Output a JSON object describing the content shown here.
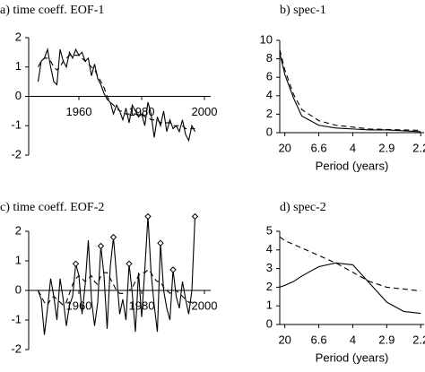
{
  "chart_data": [
    {
      "type": "line",
      "title": "a) time coeff. EOF-1",
      "x": [
        1947,
        1948,
        1949,
        1950,
        1951,
        1952,
        1953,
        1954,
        1955,
        1956,
        1957,
        1958,
        1959,
        1960,
        1961,
        1962,
        1963,
        1964,
        1965,
        1966,
        1967,
        1968,
        1969,
        1970,
        1971,
        1972,
        1973,
        1974,
        1975,
        1976,
        1977,
        1978,
        1979,
        1980,
        1981,
        1982,
        1983,
        1984,
        1985,
        1986,
        1987,
        1988,
        1989,
        1990,
        1991,
        1992,
        1993,
        1994,
        1995,
        1996,
        1997
      ],
      "series": [
        {
          "color": "#000000",
          "dash": false,
          "values": [
            0.5,
            1.2,
            1.3,
            1.6,
            1.0,
            0.5,
            0.4,
            1.6,
            1.2,
            1.0,
            1.5,
            1.3,
            1.6,
            1.4,
            1.5,
            1.2,
            1.3,
            0.7,
            1.1,
            0.6,
            0.4,
            0.1,
            -0.1,
            -0.2,
            -0.6,
            -0.3,
            -0.5,
            -0.8,
            -0.4,
            -0.9,
            -0.3,
            -0.5,
            -0.7,
            -0.6,
            -1.0,
            -0.2,
            -0.6,
            -1.4,
            -0.7,
            -1.0,
            -0.5,
            -1.2,
            -0.8,
            -1.1,
            -1.0,
            -1.2,
            -0.8,
            -1.3,
            -1.5,
            -1.0,
            -1.2
          ]
        },
        {
          "color": "#000000",
          "dash": true,
          "values": [
            1.0,
            1.2,
            1.3,
            1.3,
            1.2,
            1.0,
            0.9,
            1.0,
            1.2,
            1.3,
            1.4,
            1.4,
            1.4,
            1.4,
            1.3,
            1.2,
            1.1,
            1.0,
            0.9,
            0.7,
            0.5,
            0.3,
            0.0,
            -0.2,
            -0.3,
            -0.4,
            -0.5,
            -0.5,
            -0.6,
            -0.6,
            -0.6,
            -0.6,
            -0.6,
            -0.6,
            -0.7,
            -0.7,
            -0.8,
            -0.8,
            -0.8,
            -0.9,
            -0.9,
            -0.9,
            -0.9,
            -1.0,
            -1.0,
            -1.0,
            -1.0,
            -1.1,
            -1.1,
            -1.1,
            -1.1
          ]
        }
      ],
      "xlim": [
        1944,
        2002
      ],
      "xticks": [
        1960,
        1980,
        2000
      ],
      "ylim": [
        -2,
        2
      ],
      "yticks": [
        2,
        1,
        0,
        -1,
        -2
      ]
    },
    {
      "type": "line",
      "title": "b) spec-1",
      "xlabel": "Period (years)",
      "x": [
        0.035,
        0.05,
        0.075,
        0.1,
        0.15,
        0.2,
        0.25,
        0.3,
        0.35,
        0.4,
        0.45
      ],
      "series": [
        {
          "color": "#000000",
          "dash": false,
          "values": [
            8.6,
            6.3,
            3.8,
            1.8,
            0.8,
            0.5,
            0.4,
            0.3,
            0.3,
            0.2,
            0.1
          ]
        },
        {
          "color": "#000000",
          "dash": true,
          "values": [
            9.0,
            6.8,
            4.2,
            2.5,
            1.3,
            0.8,
            0.6,
            0.4,
            0.35,
            0.3,
            0.25
          ]
        }
      ],
      "xlim": [
        0.035,
        0.46
      ],
      "xticks": [
        {
          "value": 0.05,
          "label": "20"
        },
        {
          "value": 0.15,
          "label": "6.6"
        },
        {
          "value": 0.25,
          "label": "4"
        },
        {
          "value": 0.35,
          "label": "2.9"
        },
        {
          "value": 0.45,
          "label": "2.2"
        }
      ],
      "ylim": [
        0,
        10
      ],
      "yticks": [
        10,
        8,
        6,
        4,
        2,
        0
      ]
    },
    {
      "type": "line",
      "title": "c) time coeff. EOF-2",
      "x": [
        1947,
        1948,
        1949,
        1950,
        1951,
        1952,
        1953,
        1954,
        1955,
        1956,
        1957,
        1958,
        1959,
        1960,
        1961,
        1962,
        1963,
        1964,
        1965,
        1966,
        1967,
        1968,
        1969,
        1970,
        1971,
        1972,
        1973,
        1974,
        1975,
        1976,
        1977,
        1978,
        1979,
        1980,
        1981,
        1982,
        1983,
        1984,
        1985,
        1986,
        1987,
        1988,
        1989,
        1990,
        1991,
        1992,
        1993,
        1994,
        1995,
        1996,
        1997
      ],
      "series": [
        {
          "color": "#000000",
          "dash": false,
          "values": [
            0.0,
            -0.3,
            -1.5,
            -0.6,
            0.4,
            -0.2,
            -1.0,
            0.4,
            -0.3,
            -1.2,
            -0.5,
            -0.2,
            0.9,
            0.5,
            -0.8,
            0.2,
            1.7,
            -0.3,
            -1.2,
            -0.4,
            1.5,
            0.5,
            -1.3,
            0.8,
            1.8,
            0.5,
            -0.8,
            -0.3,
            -1.0,
            0.9,
            -0.1,
            -1.4,
            0.6,
            -0.9,
            0.7,
            2.5,
            0.6,
            -0.5,
            -1.4,
            1.6,
            0.0,
            -0.6,
            -1.0,
            0.7,
            -0.2,
            -0.6,
            0.3,
            -0.3,
            -0.8,
            0.0,
            2.5
          ]
        },
        {
          "color": "#000000",
          "dash": true,
          "values": [
            0.0,
            -0.2,
            -0.4,
            -0.5,
            -0.3,
            -0.2,
            -0.3,
            -0.4,
            -0.5,
            -0.4,
            -0.1,
            0.2,
            0.4,
            0.5,
            0.4,
            0.3,
            0.4,
            0.5,
            0.3,
            0.2,
            0.5,
            0.6,
            0.6,
            0.4,
            0.2,
            0.0,
            -0.1,
            -0.1,
            0.0,
            0.0,
            0.1,
            0.3,
            0.5,
            0.6,
            0.6,
            0.7,
            0.6,
            0.4,
            0.3,
            0.3,
            0.1,
            0.0,
            -0.1,
            0.0,
            0.0,
            -0.1,
            -0.2,
            -0.3,
            -0.4,
            -0.4,
            -0.4
          ]
        },
        {
          "color": "#000000",
          "marker": "diamond",
          "values": [
            null,
            null,
            null,
            null,
            null,
            null,
            null,
            null,
            null,
            null,
            null,
            null,
            0.9,
            null,
            null,
            null,
            null,
            null,
            null,
            null,
            1.5,
            null,
            null,
            null,
            1.8,
            null,
            null,
            null,
            null,
            0.9,
            null,
            null,
            null,
            null,
            null,
            2.5,
            null,
            null,
            null,
            1.6,
            null,
            null,
            null,
            0.7,
            null,
            null,
            null,
            null,
            null,
            null,
            2.5
          ]
        }
      ],
      "xlim": [
        1944,
        2002
      ],
      "xticks": [
        1960,
        1980,
        2000
      ],
      "ylim": [
        -2,
        2.6
      ],
      "yticks": [
        2,
        1,
        0,
        -1,
        -2
      ]
    },
    {
      "type": "line",
      "title": "d) spec-2",
      "xlabel": "Period (years)",
      "x": [
        0.035,
        0.05,
        0.075,
        0.1,
        0.15,
        0.2,
        0.25,
        0.3,
        0.35,
        0.4,
        0.45
      ],
      "series": [
        {
          "color": "#000000",
          "dash": false,
          "values": [
            2.0,
            2.1,
            2.3,
            2.6,
            3.1,
            3.3,
            3.2,
            2.2,
            1.2,
            0.7,
            0.6
          ]
        },
        {
          "color": "#000000",
          "dash": true,
          "values": [
            4.7,
            4.5,
            4.3,
            4.1,
            3.7,
            3.3,
            2.8,
            2.3,
            2.0,
            1.9,
            1.8
          ]
        }
      ],
      "xlim": [
        0.035,
        0.46
      ],
      "xticks": [
        {
          "value": 0.05,
          "label": "20"
        },
        {
          "value": 0.15,
          "label": "6.6"
        },
        {
          "value": 0.25,
          "label": "4"
        },
        {
          "value": 0.35,
          "label": "2.9"
        },
        {
          "value": 0.45,
          "label": "2.2"
        }
      ],
      "ylim": [
        0,
        5
      ],
      "yticks": [
        5,
        4,
        3,
        2,
        1,
        0
      ]
    }
  ]
}
